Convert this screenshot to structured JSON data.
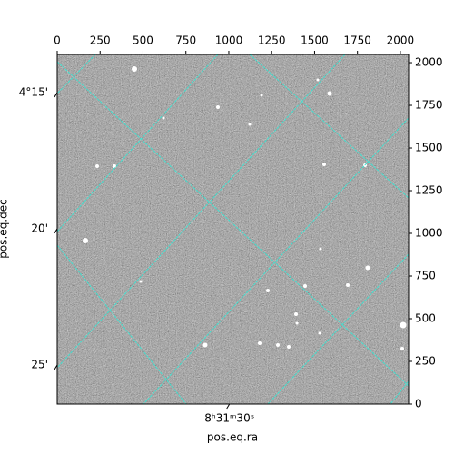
{
  "chart_data": {
    "type": "image",
    "xlabel": "pos.eq.ra",
    "ylabel": "pos.eq.dec",
    "xlim": [
      0,
      2048
    ],
    "ylim": [
      0,
      2048
    ],
    "xticks": [
      0,
      250,
      500,
      750,
      1000,
      1250,
      1500,
      1750,
      2000
    ],
    "yticks": [
      0,
      250,
      500,
      750,
      1000,
      1250,
      1500,
      1750,
      2000
    ],
    "ra_lim": [
      127.9,
      127.849
    ],
    "ra_ticks": [
      {
        "value": 127.875,
        "label": "8ʰ31ᵐ30ˢ"
      }
    ],
    "dec_lim": [
      4.2267,
      4.4406
    ],
    "dec_ticks": [
      {
        "value": 4.25,
        "label": "4°15'"
      },
      {
        "value": 4.3333,
        "label": "20'"
      },
      {
        "value": 4.4167,
        "label": "25'"
      }
    ],
    "grid_color": "#40e0d0"
  }
}
